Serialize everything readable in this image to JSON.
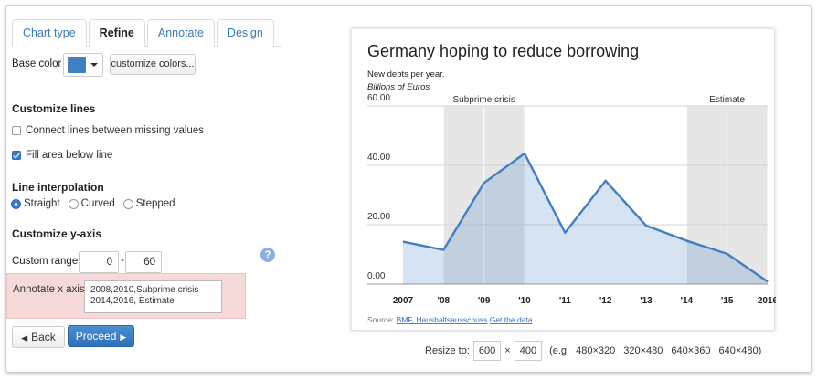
{
  "tabs": [
    {
      "label": "Chart type",
      "active": false
    },
    {
      "label": "Refine",
      "active": true
    },
    {
      "label": "Annotate",
      "active": false
    },
    {
      "label": "Design",
      "active": false
    }
  ],
  "base_color": {
    "label": "Base color",
    "color": "#3f7fc2",
    "customize_label": "customize colors..."
  },
  "lines": {
    "title": "Customize lines",
    "connect_label": "Connect lines between missing values",
    "connect_checked": false,
    "fill_label": "Fill area below line",
    "fill_checked": true
  },
  "interpolation": {
    "title": "Line interpolation",
    "options": [
      "Straight",
      "Curved",
      "Stepped"
    ],
    "selected": "Straight"
  },
  "yaxis": {
    "title": "Customize y-axis",
    "range_label": "Custom range:",
    "min": "0",
    "dash": "-",
    "max": "60",
    "help": "?"
  },
  "annotate": {
    "label": "Annotate x axis:",
    "value": "2008,2010,Subprime crisis\n2014,2016, Estimate"
  },
  "buttons": {
    "back": "Back",
    "proceed": "Proceed"
  },
  "resize": {
    "label": "Resize to:",
    "width": "600",
    "times": "×",
    "height": "400",
    "presets_prefix": "(e.g.",
    "presets": [
      "480×320",
      "320×480",
      "640×360",
      "640×480)"
    ]
  },
  "chart_data": {
    "type": "area",
    "title": "Germany hoping to reduce borrowing",
    "subtitle": "New debts per year.",
    "unit_label": "Billions of Euros",
    "x": [
      "2007",
      "'08",
      "'09",
      "'10",
      "'11",
      "'12",
      "'13",
      "'14",
      "'15",
      "2016"
    ],
    "values": [
      14.3,
      11.5,
      34.1,
      44.0,
      17.3,
      34.8,
      19.7,
      14.6,
      10.2,
      0.8
    ],
    "ylim": [
      0,
      60
    ],
    "yticks": [
      "60.00",
      "40.00",
      "20.00",
      "0.00"
    ],
    "color": "#3f7fc2",
    "shaded_ranges": [
      {
        "from": "'08",
        "to": "'10",
        "label": "Subprime crisis"
      },
      {
        "from": "'14",
        "to": "2016",
        "label": "Estimate"
      }
    ],
    "source_prefix": "Source:",
    "source_link": "BMF, Haushaltsausschuss",
    "data_link": "Get the data",
    "grid": true
  }
}
